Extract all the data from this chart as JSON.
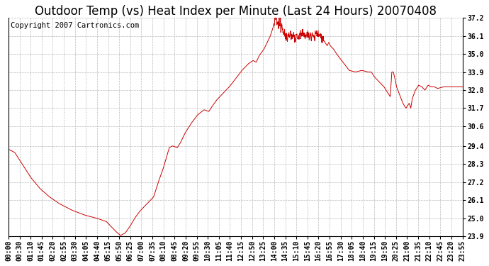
{
  "title": "Outdoor Temp (vs) Heat Index per Minute (Last 24 Hours) 20070408",
  "copyright_text": "Copyright 2007 Cartronics.com",
  "line_color": "#cc0000",
  "background_color": "#ffffff",
  "grid_color": "#bbbbbb",
  "yticks": [
    23.9,
    25.0,
    26.1,
    27.2,
    28.3,
    29.4,
    30.6,
    31.7,
    32.8,
    33.9,
    35.0,
    36.1,
    37.2
  ],
  "ylim": [
    23.9,
    37.2
  ],
  "x_tick_labels": [
    "00:00",
    "00:30",
    "01:10",
    "01:45",
    "02:20",
    "02:55",
    "03:30",
    "04:05",
    "04:40",
    "05:15",
    "05:50",
    "06:25",
    "07:00",
    "07:35",
    "08:10",
    "08:45",
    "09:20",
    "09:55",
    "10:30",
    "11:05",
    "11:40",
    "12:15",
    "12:50",
    "13:25",
    "14:00",
    "14:35",
    "15:10",
    "15:45",
    "16:20",
    "16:55",
    "17:30",
    "18:05",
    "18:40",
    "19:15",
    "19:50",
    "20:25",
    "21:00",
    "21:35",
    "22:10",
    "22:45",
    "23:20",
    "23:55"
  ],
  "keypoints": [
    [
      0,
      29.2
    ],
    [
      20,
      29.0
    ],
    [
      40,
      28.4
    ],
    [
      70,
      27.5
    ],
    [
      100,
      26.8
    ],
    [
      130,
      26.3
    ],
    [
      160,
      25.9
    ],
    [
      200,
      25.5
    ],
    [
      240,
      25.2
    ],
    [
      280,
      25.0
    ],
    [
      310,
      24.8
    ],
    [
      325,
      24.5
    ],
    [
      340,
      24.2
    ],
    [
      355,
      23.95
    ],
    [
      370,
      24.1
    ],
    [
      385,
      24.5
    ],
    [
      400,
      25.0
    ],
    [
      415,
      25.4
    ],
    [
      430,
      25.7
    ],
    [
      445,
      26.0
    ],
    [
      460,
      26.3
    ],
    [
      475,
      27.2
    ],
    [
      490,
      28.0
    ],
    [
      505,
      29.0
    ],
    [
      510,
      29.3
    ],
    [
      520,
      29.4
    ],
    [
      535,
      29.3
    ],
    [
      545,
      29.6
    ],
    [
      560,
      30.2
    ],
    [
      580,
      30.8
    ],
    [
      600,
      31.3
    ],
    [
      620,
      31.6
    ],
    [
      635,
      31.5
    ],
    [
      645,
      31.8
    ],
    [
      660,
      32.2
    ],
    [
      680,
      32.6
    ],
    [
      700,
      33.0
    ],
    [
      720,
      33.5
    ],
    [
      740,
      34.0
    ],
    [
      760,
      34.4
    ],
    [
      775,
      34.6
    ],
    [
      785,
      34.5
    ],
    [
      795,
      34.9
    ],
    [
      810,
      35.3
    ],
    [
      820,
      35.7
    ],
    [
      830,
      36.1
    ],
    [
      835,
      36.4
    ],
    [
      840,
      36.7
    ],
    [
      845,
      37.0
    ],
    [
      848,
      37.2
    ],
    [
      851,
      37.0
    ],
    [
      854,
      36.7
    ],
    [
      857,
      37.0
    ],
    [
      860,
      36.8
    ],
    [
      863,
      36.5
    ],
    [
      866,
      36.8
    ],
    [
      869,
      36.3
    ],
    [
      872,
      36.6
    ],
    [
      875,
      36.4
    ],
    [
      878,
      36.1
    ],
    [
      881,
      36.3
    ],
    [
      884,
      36.0
    ],
    [
      887,
      36.2
    ],
    [
      890,
      36.0
    ],
    [
      895,
      36.2
    ],
    [
      900,
      36.0
    ],
    [
      905,
      36.2
    ],
    [
      910,
      36.0
    ],
    [
      920,
      36.1
    ],
    [
      930,
      36.1
    ],
    [
      940,
      36.2
    ],
    [
      950,
      36.1
    ],
    [
      960,
      36.2
    ],
    [
      970,
      36.1
    ],
    [
      980,
      36.2
    ],
    [
      990,
      36.1
    ],
    [
      1000,
      35.8
    ],
    [
      1010,
      35.5
    ],
    [
      1015,
      35.7
    ],
    [
      1020,
      35.5
    ],
    [
      1030,
      35.3
    ],
    [
      1040,
      35.0
    ],
    [
      1060,
      34.5
    ],
    [
      1080,
      34.0
    ],
    [
      1100,
      33.9
    ],
    [
      1120,
      34.0
    ],
    [
      1140,
      33.9
    ],
    [
      1150,
      33.9
    ],
    [
      1160,
      33.6
    ],
    [
      1170,
      33.4
    ],
    [
      1180,
      33.2
    ],
    [
      1190,
      33.0
    ],
    [
      1200,
      32.7
    ],
    [
      1210,
      32.4
    ],
    [
      1215,
      33.9
    ],
    [
      1220,
      33.9
    ],
    [
      1225,
      33.5
    ],
    [
      1230,
      33.0
    ],
    [
      1240,
      32.5
    ],
    [
      1250,
      32.0
    ],
    [
      1260,
      31.7
    ],
    [
      1270,
      32.0
    ],
    [
      1275,
      31.7
    ],
    [
      1280,
      32.3
    ],
    [
      1290,
      32.8
    ],
    [
      1300,
      33.1
    ],
    [
      1310,
      33.0
    ],
    [
      1320,
      32.8
    ],
    [
      1330,
      33.1
    ],
    [
      1340,
      33.0
    ],
    [
      1350,
      33.0
    ],
    [
      1360,
      32.9
    ],
    [
      1380,
      33.0
    ],
    [
      1400,
      33.0
    ],
    [
      1420,
      33.0
    ],
    [
      1439,
      33.0
    ]
  ],
  "noise_regions": [
    [
      840,
      1000,
      0.18
    ]
  ],
  "title_fontsize": 12,
  "tick_fontsize": 7,
  "copyright_fontsize": 7.5
}
